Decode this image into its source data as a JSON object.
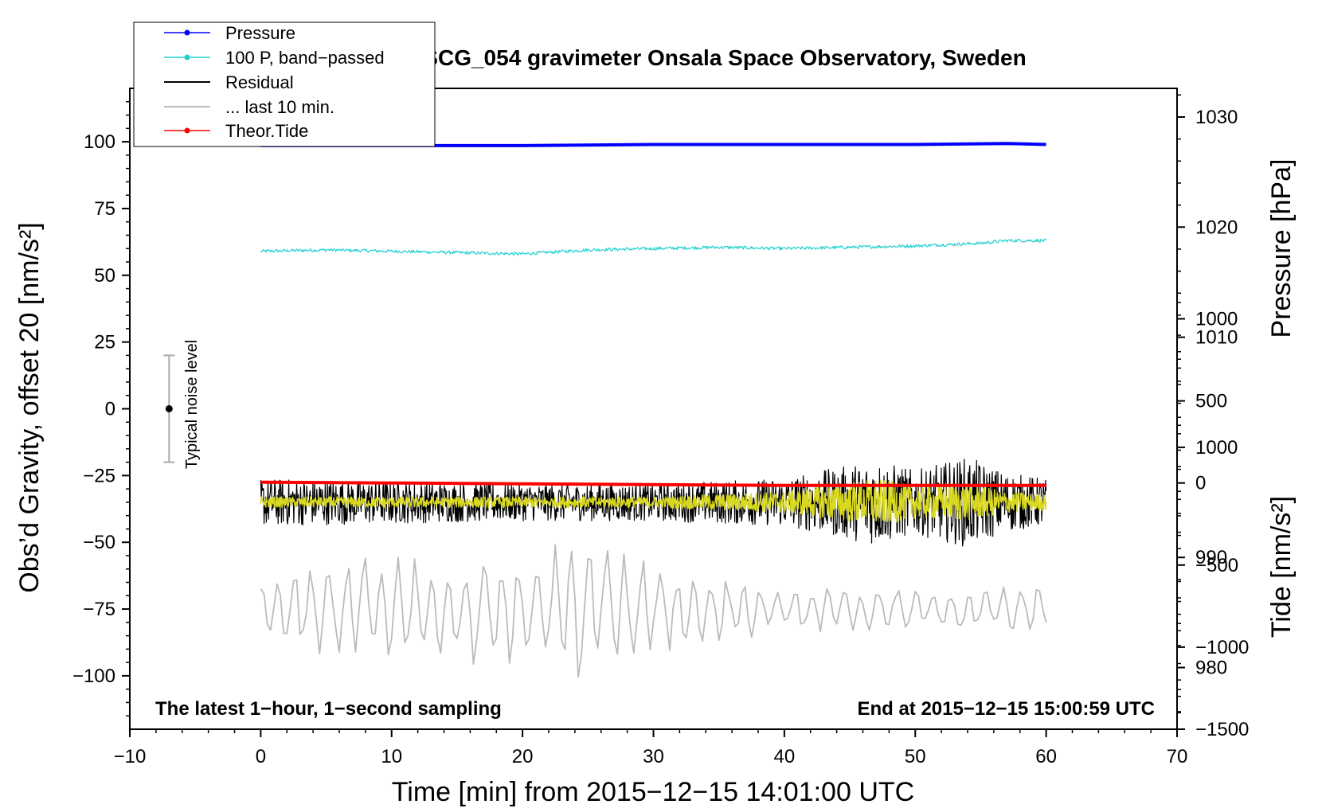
{
  "chart_data": {
    "type": "line",
    "title": "SCG_054 gravimeter Onsala Space Observatory, Sweden",
    "xlabel": "Time [min] from 2015−12−15 14:01:00 UTC",
    "ylabel_left": "Obs’d Gravity, offset 20 [nm/s²]",
    "ylabel_right_pressure": "Pressure [hPa]",
    "ylabel_right_tide": "Tide [nm/s²]",
    "xlim": [
      -10,
      70
    ],
    "ylim_left": [
      -120,
      120
    ],
    "ylim_pressure": [
      974.4,
      1032.6
    ],
    "ylim_tide": [
      -1500,
      2404
    ],
    "x_ticks": [
      {
        "value": -10,
        "label": "−10"
      },
      {
        "value": 0,
        "label": "0"
      },
      {
        "value": 10,
        "label": "10"
      },
      {
        "value": 20,
        "label": "20"
      },
      {
        "value": 30,
        "label": "30"
      },
      {
        "value": 40,
        "label": "40"
      },
      {
        "value": 50,
        "label": "50"
      },
      {
        "value": 60,
        "label": "60"
      },
      {
        "value": 70,
        "label": "70"
      }
    ],
    "y_left_ticks": [
      {
        "value": 100,
        "label": "100"
      },
      {
        "value": 75,
        "label": "75"
      },
      {
        "value": 50,
        "label": "50"
      },
      {
        "value": 25,
        "label": "25"
      },
      {
        "value": 0,
        "label": "0"
      },
      {
        "value": -25,
        "label": "−25"
      },
      {
        "value": -50,
        "label": "−50"
      },
      {
        "value": -75,
        "label": "−75"
      },
      {
        "value": -100,
        "label": "−100"
      }
    ],
    "y_pressure_ticks": [
      {
        "value": 1030,
        "label": "1030"
      },
      {
        "value": 1020,
        "label": "1020"
      },
      {
        "value": 1010,
        "label": "1010"
      },
      {
        "value": 1000,
        "label": "1000"
      },
      {
        "value": 990,
        "label": "990"
      },
      {
        "value": 980,
        "label": "980"
      }
    ],
    "y_tide_ticks": [
      {
        "value": 1000,
        "label": "1000"
      },
      {
        "value": 500,
        "label": "500"
      },
      {
        "value": 0,
        "label": "0"
      },
      {
        "value": -500,
        "label": "−500"
      },
      {
        "value": -1000,
        "label": "−1000"
      },
      {
        "value": -1500,
        "label": "−1500"
      }
    ],
    "legend": {
      "placement": "top-left",
      "entries": [
        {
          "label": "Pressure",
          "color": "#0000ff",
          "marker": true
        },
        {
          "label": "100 P, band−passed",
          "color": "#20d0d0",
          "marker": true
        },
        {
          "label": "Residual",
          "color": "#000000",
          "marker": false
        },
        {
          "label": "... last 10 min.",
          "color": "#bbbbbb",
          "marker": false
        },
        {
          "label": "Theor.Tide",
          "color": "#ff0000",
          "marker": true
        }
      ]
    },
    "annotations": {
      "bottom_left": "The latest 1−hour, 1−second sampling",
      "bottom_right": "End at 2015−12−15 15:00:59 UTC",
      "noise_label": "Typical noise level"
    },
    "noise_bar": {
      "x": -7,
      "center": 0,
      "half_range": 20
    },
    "series": [
      {
        "name": "Pressure",
        "axis": "pressure",
        "color": "#0000ff",
        "x": [
          0,
          10,
          20,
          30,
          40,
          50,
          57,
          60
        ],
        "values": [
          1027.4,
          1027.4,
          1027.4,
          1027.5,
          1027.5,
          1027.5,
          1027.6,
          1027.5
        ]
      },
      {
        "name": "100 P, band-passed",
        "axis": "left",
        "color": "#20d0d0",
        "x": [
          0,
          5,
          10,
          15,
          20,
          25,
          30,
          35,
          40,
          45,
          50,
          55,
          57,
          60
        ],
        "values": [
          59,
          59.5,
          59,
          58.5,
          58,
          59.5,
          60,
          60.5,
          60,
          60.5,
          61,
          62,
          63,
          63
        ]
      },
      {
        "name": "Residual",
        "axis": "left",
        "color": "#000000",
        "x": [
          0,
          10,
          20,
          30,
          40,
          47,
          50,
          54,
          57,
          60
        ],
        "values": [
          -35,
          -35,
          -35,
          -35,
          -35,
          -35,
          -35,
          -35,
          -35,
          -35
        ],
        "amplitude": [
          9,
          8,
          7,
          7,
          9,
          16,
          12,
          17,
          11,
          9
        ]
      },
      {
        "name": "Residual smoothed",
        "axis": "left",
        "color": "#d8d820",
        "x": [
          0,
          10,
          20,
          30,
          40,
          47,
          50,
          54,
          57,
          60
        ],
        "values": [
          -35,
          -35,
          -35,
          -35,
          -35,
          -35,
          -35,
          -35,
          -35,
          -35
        ],
        "amplitude": [
          2,
          2,
          2,
          2,
          4,
          9,
          6,
          7,
          4,
          3
        ]
      },
      {
        "name": "... last 10 min.",
        "axis": "left",
        "color": "#bbbbbb",
        "x": [
          0,
          10,
          20,
          22.5,
          30,
          40,
          50,
          60
        ],
        "values": [
          -75,
          -75,
          -75,
          -75,
          -75,
          -75,
          -75,
          -75
        ],
        "amplitude": [
          12,
          18,
          20,
          25,
          15,
          8,
          7,
          8
        ]
      },
      {
        "name": "Theor.Tide",
        "axis": "tide",
        "color": "#ff0000",
        "x": [
          0,
          10,
          20,
          30,
          40,
          50,
          60
        ],
        "values": [
          5,
          0,
          -5,
          -10,
          -15,
          -15,
          -15
        ]
      }
    ]
  }
}
